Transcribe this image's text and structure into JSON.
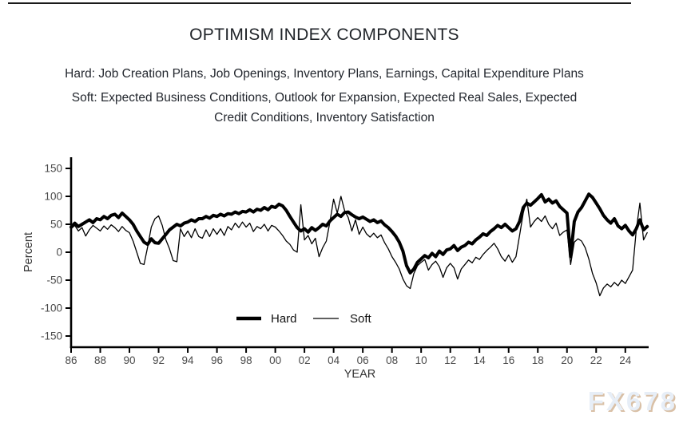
{
  "watermark": "FX678",
  "chart_data": {
    "type": "line",
    "title": "OPTIMISM INDEX COMPONENTS",
    "note_hard": "Hard: Job Creation Plans, Job Openings, Inventory Plans, Earnings, Capital Expenditure Plans",
    "note_soft": "Soft: Expected Business Conditions, Outlook for Expansion, Expected Real Sales, Expected\nCredit Conditions, Inventory Satisfaction",
    "xlabel": "YEAR",
    "ylabel": "Percent",
    "ylim": [
      -150,
      150
    ],
    "y_ticks": [
      150,
      100,
      50,
      0,
      -50,
      -100,
      -150
    ],
    "x_range": [
      1986,
      2025.6
    ],
    "x_tick_years": [
      1986,
      1988,
      1990,
      1992,
      1994,
      1996,
      1998,
      2000,
      2002,
      2004,
      2006,
      2008,
      2010,
      2012,
      2014,
      2016,
      2018,
      2020,
      2022,
      2024
    ],
    "x_tick_labels": [
      "86",
      "88",
      "90",
      "92",
      "94",
      "96",
      "98",
      "00",
      "02",
      "04",
      "06",
      "08",
      "10",
      "12",
      "14",
      "16",
      "18",
      "20",
      "22",
      "24"
    ],
    "grid": false,
    "legend_position": "inside-bottom-center",
    "line_color": "#000000",
    "tick_label_color": "#4a4a4a",
    "axis_label_color": "#333333",
    "series": [
      {
        "name": "Hard",
        "stroke_width": 4,
        "x_start": 1986,
        "x_step": 0.25,
        "values": [
          45,
          52,
          46,
          50,
          54,
          58,
          53,
          60,
          58,
          64,
          60,
          66,
          68,
          62,
          70,
          64,
          58,
          50,
          38,
          28,
          18,
          14,
          24,
          17,
          16,
          24,
          32,
          40,
          45,
          50,
          47,
          52,
          54,
          58,
          55,
          60,
          60,
          64,
          61,
          66,
          64,
          68,
          65,
          69,
          68,
          72,
          69,
          73,
          72,
          76,
          72,
          77,
          75,
          80,
          76,
          82,
          80,
          86,
          83,
          75,
          64,
          54,
          44,
          38,
          42,
          36,
          44,
          39,
          44,
          50,
          47,
          56,
          62,
          68,
          64,
          71,
          72,
          67,
          63,
          60,
          63,
          59,
          55,
          58,
          53,
          56,
          49,
          44,
          37,
          29,
          18,
          2,
          -24,
          -37,
          -30,
          -18,
          -12,
          -6,
          -10,
          -2,
          -8,
          2,
          -4,
          4,
          6,
          12,
          3,
          9,
          12,
          18,
          15,
          22,
          27,
          33,
          30,
          37,
          42,
          48,
          44,
          50,
          44,
          38,
          42,
          55,
          80,
          88,
          84,
          90,
          96,
          103,
          90,
          95,
          88,
          92,
          82,
          76,
          70,
          -8,
          55,
          72,
          80,
          92,
          104,
          98,
          88,
          78,
          66,
          58,
          52,
          60,
          47,
          42,
          48,
          38,
          31,
          42,
          58,
          40,
          46
        ]
      },
      {
        "name": "Soft",
        "stroke_width": 1.3,
        "x_start": 1986,
        "x_step": 0.25,
        "values": [
          42,
          48,
          38,
          44,
          29,
          40,
          48,
          43,
          38,
          47,
          41,
          49,
          44,
          37,
          46,
          39,
          35,
          20,
          0,
          -20,
          -22,
          10,
          45,
          60,
          65,
          48,
          22,
          6,
          -15,
          -17,
          42,
          28,
          38,
          26,
          42,
          28,
          25,
          40,
          28,
          42,
          32,
          42,
          30,
          46,
          40,
          52,
          44,
          54,
          45,
          52,
          37,
          46,
          42,
          50,
          38,
          48,
          45,
          38,
          30,
          20,
          14,
          4,
          0,
          85,
          22,
          30,
          15,
          25,
          -8,
          8,
          20,
          55,
          95,
          70,
          100,
          75,
          62,
          38,
          58,
          32,
          45,
          33,
          27,
          34,
          26,
          31,
          17,
          6,
          -8,
          -18,
          -30,
          -48,
          -60,
          -65,
          -38,
          -24,
          -18,
          -13,
          -32,
          -22,
          -16,
          -26,
          -45,
          -28,
          -20,
          -28,
          -48,
          -30,
          -22,
          -14,
          -19,
          -9,
          -13,
          -4,
          3,
          9,
          16,
          6,
          -8,
          -16,
          -5,
          -18,
          -8,
          30,
          70,
          95,
          45,
          55,
          62,
          55,
          65,
          50,
          42,
          52,
          30,
          36,
          40,
          -22,
          18,
          24,
          20,
          8,
          -12,
          -38,
          -55,
          -78,
          -64,
          -57,
          -62,
          -54,
          -60,
          -50,
          -56,
          -44,
          -32,
          40,
          88,
          22,
          35
        ]
      }
    ]
  }
}
